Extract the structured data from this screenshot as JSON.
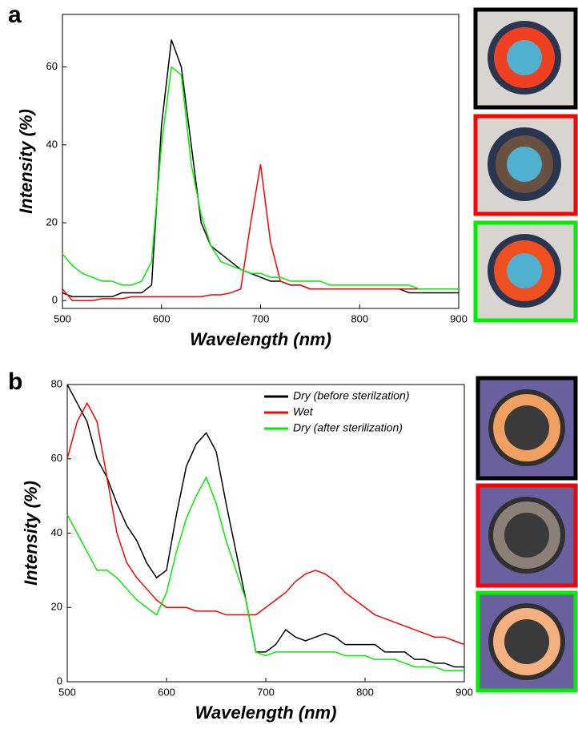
{
  "chart_data": [
    {
      "type": "line",
      "panel_label": "a",
      "x_label": "Wavelength (nm)",
      "y_label": "Intensity (%)",
      "x": [
        500,
        510,
        520,
        530,
        540,
        550,
        560,
        570,
        580,
        590,
        600,
        610,
        620,
        630,
        640,
        650,
        660,
        670,
        680,
        690,
        700,
        710,
        720,
        730,
        740,
        750,
        760,
        770,
        780,
        790,
        800,
        810,
        820,
        830,
        840,
        850,
        860,
        870,
        880,
        890,
        900
      ],
      "series": [
        {
          "color": "#000000",
          "values": [
            2,
            1,
            1,
            1,
            1,
            1,
            2,
            2,
            2,
            4,
            45,
            67,
            60,
            40,
            20,
            14,
            12,
            10,
            8,
            7,
            6,
            5,
            5,
            4,
            4,
            3,
            3,
            3,
            3,
            3,
            3,
            3,
            3,
            3,
            3,
            2,
            2,
            2,
            2,
            2,
            2
          ]
        },
        {
          "color": "#ff0000",
          "values": [
            3,
            0,
            0,
            0,
            0.5,
            0.5,
            0.5,
            1,
            1,
            1,
            1,
            1,
            1,
            1,
            1,
            1.5,
            1.5,
            2,
            3,
            20,
            35,
            15,
            5,
            4,
            4,
            3,
            3,
            3,
            3,
            3,
            3,
            3,
            3,
            3,
            3,
            3,
            3,
            3,
            3,
            3,
            3
          ]
        },
        {
          "color": "#00ee00",
          "values": [
            12,
            9,
            7,
            6,
            5,
            5,
            4,
            4,
            5,
            10,
            40,
            60,
            58,
            35,
            22,
            14,
            10,
            9,
            8,
            7,
            7,
            6,
            6,
            5,
            5,
            5,
            5,
            4,
            4,
            4,
            4,
            4,
            4,
            4,
            4,
            4,
            3,
            3,
            3,
            3,
            3
          ]
        }
      ],
      "xlim": [
        500,
        900
      ],
      "xticks": [
        500,
        600,
        700,
        800,
        900
      ],
      "ylim": [
        -2,
        73.5
      ],
      "yticks": [
        0,
        20,
        40,
        60
      ]
    },
    {
      "type": "line",
      "panel_label": "b",
      "x_label": "Wavelength (nm)",
      "y_label": "Intensity (%)",
      "x": [
        500,
        510,
        520,
        530,
        540,
        550,
        560,
        570,
        580,
        590,
        600,
        610,
        620,
        630,
        640,
        650,
        660,
        670,
        680,
        690,
        700,
        710,
        720,
        730,
        740,
        750,
        760,
        770,
        780,
        790,
        800,
        810,
        820,
        830,
        840,
        850,
        860,
        870,
        880,
        890,
        900
      ],
      "series": [
        {
          "name": "Dry (before sterilzation)",
          "color": "#000000",
          "values": [
            80,
            75,
            70,
            60,
            55,
            48,
            42,
            38,
            32,
            28,
            30,
            45,
            58,
            64,
            67,
            62,
            48,
            35,
            22,
            8,
            8,
            10,
            14,
            12,
            11,
            12,
            13,
            12,
            10,
            10,
            10,
            10,
            8,
            8,
            8,
            6,
            6,
            5,
            5,
            4,
            4
          ]
        },
        {
          "name": "Wet",
          "color": "#ff0000",
          "values": [
            60,
            70,
            75,
            70,
            55,
            40,
            32,
            28,
            25,
            22,
            20,
            20,
            20,
            19,
            19,
            19,
            18,
            18,
            18,
            18,
            20,
            22,
            24,
            27,
            29,
            30,
            29,
            27,
            24,
            22,
            20,
            18,
            17,
            16,
            15,
            14,
            13,
            12,
            12,
            11,
            10
          ]
        },
        {
          "name": "Dry (after sterilization)",
          "color": "#00ee00",
          "values": [
            45,
            40,
            35,
            30,
            30,
            28,
            25,
            22,
            20,
            18,
            24,
            35,
            44,
            50,
            55,
            48,
            38,
            30,
            22,
            8,
            7,
            8,
            8,
            8,
            8,
            8,
            8,
            8,
            7,
            7,
            7,
            6,
            6,
            6,
            5,
            4,
            4,
            4,
            3,
            3,
            3
          ]
        }
      ],
      "xlim": [
        500,
        900
      ],
      "xticks": [
        500,
        600,
        700,
        800,
        900
      ],
      "ylim": [
        0,
        80
      ],
      "yticks": [
        0,
        20,
        40,
        60,
        80
      ],
      "legend": "upper right"
    }
  ]
}
